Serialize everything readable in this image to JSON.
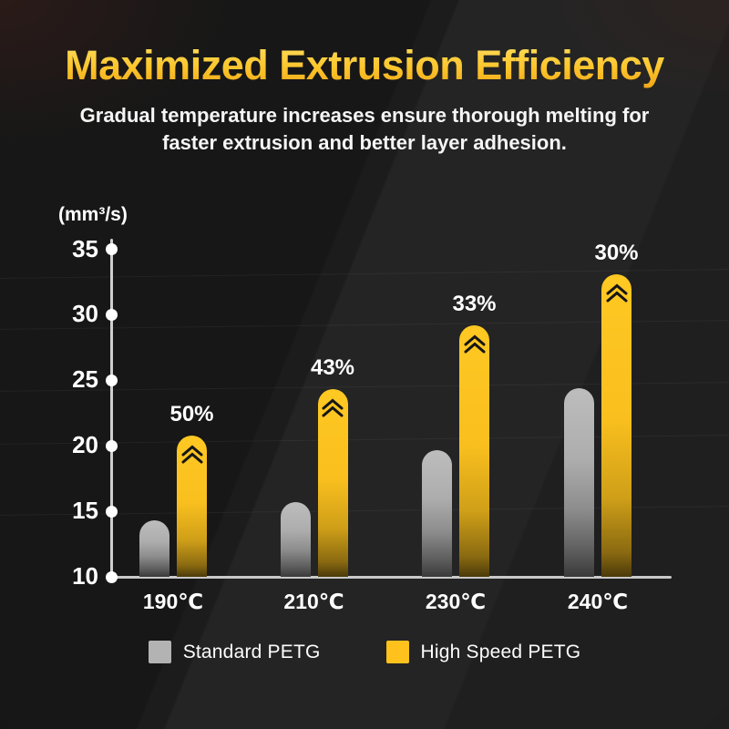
{
  "header": {
    "title": "Maximized Extrusion Efficiency",
    "subtitle_line1": "Gradual temperature increases ensure thorough melting for",
    "subtitle_line2": "faster extrusion and better layer adhesion."
  },
  "chart_data": {
    "type": "bar",
    "title": "Maximized Extrusion Efficiency",
    "unit_label": "(mm³/s)",
    "ylabel": "(mm³/s)",
    "categories": [
      "190℃",
      "210℃",
      "230℃",
      "240℃"
    ],
    "series": [
      {
        "name": "Standard PETG",
        "color": "#b3b3b3",
        "values": [
          14.3,
          15.7,
          19.7,
          24.4
        ]
      },
      {
        "name": "High Speed PETG",
        "color": "#ffc21c",
        "values": [
          20.8,
          24.3,
          29.2,
          33.1
        ]
      }
    ],
    "bar_annotations": [
      "50%",
      "43%",
      "33%",
      "30%"
    ],
    "ylim": [
      10,
      35
    ],
    "yticks": [
      35,
      30,
      25,
      20,
      15,
      10
    ],
    "grid": false,
    "legend_position": "bottom"
  },
  "legend": {
    "items": [
      {
        "label": "Standard PETG",
        "color": "#b3b3b3"
      },
      {
        "label": "High Speed PETG",
        "color": "#ffc21c"
      }
    ]
  },
  "colors": {
    "background": "#1f1f1f",
    "title_gradient_top": "#ffde60",
    "title_gradient_bottom": "#efa517",
    "axis": "#cfcfcf",
    "text": "#ffffff",
    "bar_gray_top": "#bdbdbd",
    "bar_gray_bottom": "#3a3a3a",
    "bar_yellow_top": "#ffc822",
    "bar_yellow_bottom": "#4b3a0a",
    "chevron": "#161616"
  }
}
